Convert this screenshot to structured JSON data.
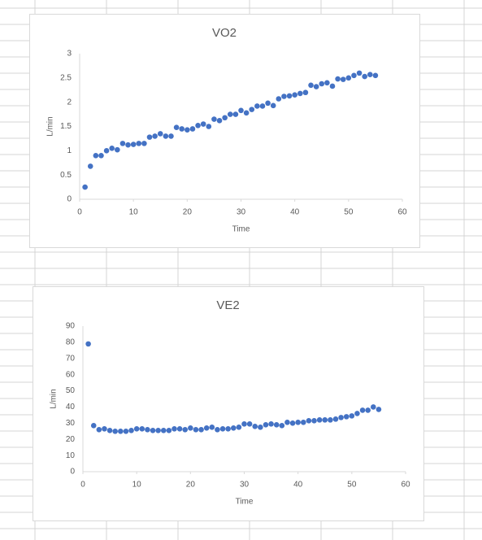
{
  "chart_data": [
    {
      "type": "scatter",
      "title": "VO2",
      "xlabel": "Time",
      "ylabel": "L/min",
      "color": "#4472c4",
      "grid": false,
      "x": [
        1,
        2,
        3,
        4,
        5,
        6,
        7,
        8,
        9,
        10,
        11,
        12,
        13,
        14,
        15,
        16,
        17,
        18,
        19,
        20,
        21,
        22,
        23,
        24,
        25,
        26,
        27,
        28,
        29,
        30,
        31,
        32,
        33,
        34,
        35,
        36,
        37,
        38,
        39,
        40,
        41,
        42,
        43,
        44,
        45,
        46,
        47,
        48,
        49,
        50,
        51,
        52,
        53,
        54,
        55
      ],
      "values": [
        0.25,
        0.68,
        0.9,
        0.9,
        1.0,
        1.05,
        1.02,
        1.15,
        1.12,
        1.13,
        1.15,
        1.15,
        1.28,
        1.3,
        1.35,
        1.3,
        1.3,
        1.48,
        1.45,
        1.43,
        1.45,
        1.52,
        1.55,
        1.5,
        1.65,
        1.62,
        1.68,
        1.75,
        1.75,
        1.83,
        1.78,
        1.85,
        1.92,
        1.92,
        1.98,
        1.93,
        2.07,
        2.12,
        2.13,
        2.15,
        2.18,
        2.2,
        2.35,
        2.32,
        2.38,
        2.4,
        2.33,
        2.48,
        2.47,
        2.5,
        2.55,
        2.6,
        2.53,
        2.57,
        2.55
      ],
      "xlim": [
        0,
        60
      ],
      "xticks": [
        0,
        10,
        20,
        30,
        40,
        50,
        60
      ],
      "ylim": [
        0,
        3
      ],
      "yticks": [
        0,
        0.5,
        1,
        1.5,
        2,
        2.5,
        3
      ]
    },
    {
      "type": "scatter",
      "title": "VE2",
      "xlabel": "Time",
      "ylabel": "L/min",
      "color": "#4472c4",
      "grid": false,
      "x": [
        1,
        2,
        3,
        4,
        5,
        6,
        7,
        8,
        9,
        10,
        11,
        12,
        13,
        14,
        15,
        16,
        17,
        18,
        19,
        20,
        21,
        22,
        23,
        24,
        25,
        26,
        27,
        28,
        29,
        30,
        31,
        32,
        33,
        34,
        35,
        36,
        37,
        38,
        39,
        40,
        41,
        42,
        43,
        44,
        45,
        46,
        47,
        48,
        49,
        50,
        51,
        52,
        53,
        54,
        55
      ],
      "values": [
        79,
        28.5,
        26,
        26.5,
        25.5,
        25,
        25,
        25,
        25.5,
        26.5,
        26.5,
        26,
        25.5,
        25.5,
        25.5,
        25.5,
        26.5,
        26.5,
        26,
        27,
        26,
        26,
        27,
        27.5,
        26,
        26.5,
        26.5,
        27,
        27.5,
        29.5,
        29.5,
        28,
        27.5,
        29,
        29.5,
        29,
        28.5,
        30.5,
        30,
        30.5,
        30.5,
        31.5,
        31.5,
        32,
        32,
        32,
        32.5,
        33.5,
        34,
        34.5,
        36,
        38,
        38,
        40,
        38.5
      ],
      "xlim": [
        0,
        60
      ],
      "xticks": [
        0,
        10,
        20,
        30,
        40,
        50,
        60
      ],
      "ylim": [
        0,
        90
      ],
      "yticks": [
        0,
        10,
        20,
        30,
        40,
        50,
        60,
        70,
        80,
        90
      ]
    }
  ]
}
